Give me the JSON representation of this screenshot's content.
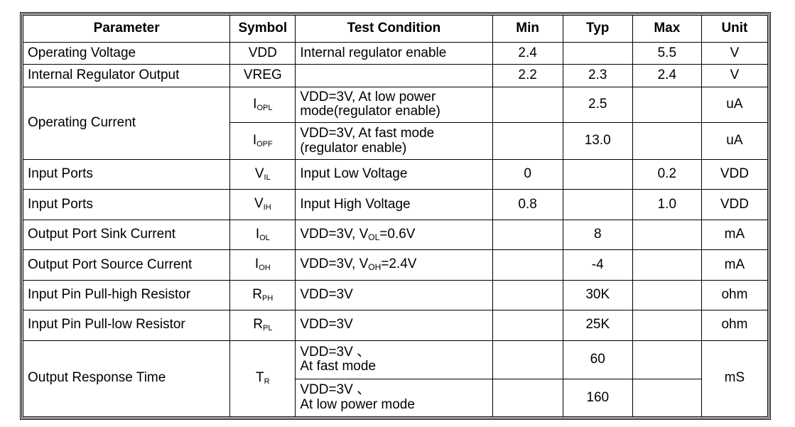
{
  "headers": [
    "Parameter",
    "Symbol",
    "Test Condition",
    "Min",
    "Typ",
    "Max",
    "Unit"
  ],
  "rows": [
    {
      "parameter": "Operating Voltage",
      "symbol": "VDD",
      "condition": "Internal regulator enable",
      "min": "2.4",
      "typ": "",
      "max": "5.5",
      "unit": "V"
    },
    {
      "parameter": "Internal Regulator Output",
      "symbol": "VREG",
      "condition": "",
      "min": "2.2",
      "typ": "2.3",
      "max": "2.4",
      "unit": "V"
    },
    {
      "parameter": "Operating Current",
      "symbol_main": "I",
      "symbol_sub": "OPL",
      "condition_line1": "VDD=3V, At low power",
      "condition_line2": "mode(regulator enable)",
      "min": "",
      "typ": "2.5",
      "max": "",
      "unit": "uA"
    },
    {
      "symbol_main": "I",
      "symbol_sub": "OPF",
      "condition_line1": "VDD=3V, At fast mode",
      "condition_line2": "(regulator enable)",
      "min": "",
      "typ": "13.0",
      "max": "",
      "unit": "uA"
    },
    {
      "parameter": "Input Ports",
      "symbol_main": "V",
      "symbol_sub": "IL",
      "condition": "Input Low Voltage",
      "min": "0",
      "typ": "",
      "max": "0.2",
      "unit": "VDD"
    },
    {
      "parameter": "Input Ports",
      "symbol_main": "V",
      "symbol_sub": "IH",
      "condition": "Input High Voltage",
      "min": "0.8",
      "typ": "",
      "max": "1.0",
      "unit": "VDD"
    },
    {
      "parameter": "Output Port Sink Current",
      "symbol_main": "I",
      "symbol_sub": "OL",
      "condition_pre": "VDD=3V, V",
      "condition_sub": "OL",
      "condition_post": "=0.6V",
      "min": "",
      "typ": "8",
      "max": "",
      "unit": "mA"
    },
    {
      "parameter": "Output Port Source Current",
      "symbol_main": "I",
      "symbol_sub": "OH",
      "condition_pre": "VDD=3V, V",
      "condition_sub": "OH",
      "condition_post": "=2.4V",
      "min": "",
      "typ": "-4",
      "max": "",
      "unit": "mA"
    },
    {
      "parameter": "Input Pin Pull-high Resistor",
      "symbol_main": "R",
      "symbol_sub": "PH",
      "condition": "VDD=3V",
      "min": "",
      "typ": "30K",
      "max": "",
      "unit": "ohm"
    },
    {
      "parameter": "Input Pin Pull-low Resistor",
      "symbol_main": "R",
      "symbol_sub": "PL",
      "condition": "VDD=3V",
      "min": "",
      "typ": "25K",
      "max": "",
      "unit": "ohm"
    },
    {
      "parameter": "Output Response Time",
      "symbol_main": "T",
      "symbol_sub": "R",
      "condition_line1": "VDD=3V 、",
      "condition_line2": "At fast mode",
      "min": "",
      "typ": "60",
      "max": "",
      "unit": "mS"
    },
    {
      "condition_line1": "VDD=3V 、",
      "condition_line2": "At low power mode",
      "min": "",
      "typ": "160",
      "max": ""
    }
  ]
}
